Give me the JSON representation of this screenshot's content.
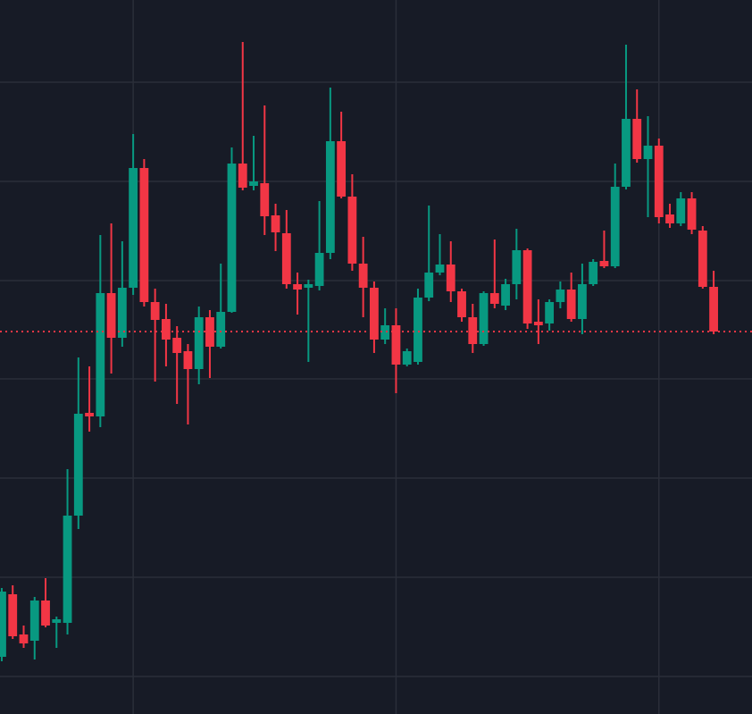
{
  "chart_data": {
    "type": "candlestick",
    "categories": [
      null,
      null,
      null,
      null,
      null,
      null,
      null,
      null,
      null,
      null,
      null,
      null,
      null,
      null,
      null,
      null,
      null,
      null,
      null,
      null,
      null,
      null,
      null,
      null,
      null,
      null,
      null,
      null,
      null,
      null,
      null,
      null,
      null,
      null,
      null,
      null,
      null,
      null,
      null,
      null,
      null,
      null,
      null,
      null,
      null,
      null,
      null,
      null,
      null,
      null,
      null,
      null,
      null,
      null,
      null,
      null,
      null,
      null,
      null,
      null,
      null,
      null,
      null,
      null,
      null,
      null
    ],
    "open": [
      6.4,
      13.4,
      8.9,
      8.2,
      12.7,
      10.2,
      10.2,
      22.2,
      33.7,
      33.3,
      47.1,
      42.1,
      47.7,
      61.1,
      46.1,
      44.2,
      42.1,
      40.6,
      38.6,
      44.4,
      41.1,
      45.0,
      61.6,
      59.1,
      59.4,
      55.8,
      53.8,
      48.1,
      47.7,
      47.9,
      51.6,
      64.1,
      57.9,
      50.4,
      47.7,
      41.9,
      43.5,
      39.1,
      39.4,
      46.6,
      49.4,
      50.3,
      47.3,
      44.4,
      41.4,
      47.1,
      45.7,
      48.1,
      51.9,
      43.9,
      43.7,
      46.1,
      47.5,
      44.2,
      48.1,
      50.7,
      50.1,
      59.0,
      66.6,
      62.1,
      63.6,
      55.9,
      54.9,
      57.7,
      54.1,
      47.8
    ],
    "high": [
      14.1,
      14.4,
      9.9,
      13.1,
      15.2,
      10.9,
      27.4,
      39.9,
      38.9,
      53.6,
      54.9,
      52.9,
      64.9,
      62.1,
      47.6,
      45.9,
      43.4,
      41.4,
      45.6,
      45.2,
      50.4,
      63.4,
      75.2,
      64.7,
      68.1,
      57.1,
      56.4,
      49.4,
      48.6,
      57.4,
      70.1,
      67.4,
      60.4,
      53.4,
      48.4,
      45.4,
      45.4,
      40.9,
      47.6,
      56.9,
      53.7,
      52.9,
      47.6,
      45.9,
      47.3,
      53.1,
      48.7,
      54.3,
      52.1,
      46.4,
      46.4,
      48.4,
      49.4,
      50.4,
      50.9,
      54.1,
      61.6,
      74.9,
      69.9,
      66.9,
      64.4,
      57.1,
      58.4,
      58.4,
      54.6,
      49.6
    ],
    "low": [
      5.9,
      8.4,
      7.4,
      6.1,
      9.7,
      7.4,
      8.9,
      20.7,
      31.6,
      32.1,
      38.1,
      41.1,
      46.9,
      45.6,
      37.2,
      38.9,
      34.7,
      32.4,
      36.9,
      37.6,
      40.9,
      44.9,
      58.6,
      58.6,
      53.6,
      51.8,
      47.6,
      44.7,
      39.4,
      47.4,
      50.9,
      57.7,
      49.6,
      44.4,
      40.4,
      41.4,
      35.9,
      38.9,
      39.1,
      46.2,
      49.1,
      46.1,
      43.9,
      40.4,
      41.2,
      45.4,
      45.2,
      46.4,
      43.1,
      41.4,
      42.9,
      45.4,
      43.9,
      42.5,
      47.9,
      49.9,
      49.9,
      58.7,
      61.7,
      55.6,
      54.9,
      54.4,
      54.6,
      53.7,
      47.6,
      42.5
    ],
    "close": [
      13.7,
      8.7,
      7.9,
      12.7,
      9.9,
      10.6,
      22.2,
      33.6,
      33.3,
      47.1,
      42.1,
      47.7,
      61.1,
      46.1,
      44.1,
      41.9,
      40.4,
      38.6,
      44.4,
      41.1,
      45.0,
      61.6,
      58.9,
      59.6,
      55.7,
      53.9,
      48.1,
      47.5,
      48.1,
      51.6,
      64.1,
      57.9,
      50.4,
      47.7,
      41.9,
      43.5,
      39.1,
      40.6,
      46.6,
      49.4,
      50.3,
      47.3,
      44.4,
      41.4,
      47.1,
      45.9,
      48.1,
      51.9,
      43.7,
      43.5,
      46.1,
      47.5,
      44.2,
      48.1,
      50.6,
      50.1,
      59.0,
      66.6,
      62.1,
      63.6,
      55.6,
      54.9,
      57.7,
      54.2,
      47.8,
      42.8
    ],
    "up_color": "#089981",
    "down_color": "#f23645",
    "grid_color": "#2a2e39",
    "ylim": [
      0,
      79.9
    ],
    "yticks": [
      4.2,
      15.3,
      26.4,
      37.5,
      48.5,
      59.6,
      70.7
    ],
    "xlim": [
      -0.16,
      68.5
    ],
    "xticks": [
      12,
      36,
      60
    ],
    "grid": true,
    "price_line": 42.8
  }
}
